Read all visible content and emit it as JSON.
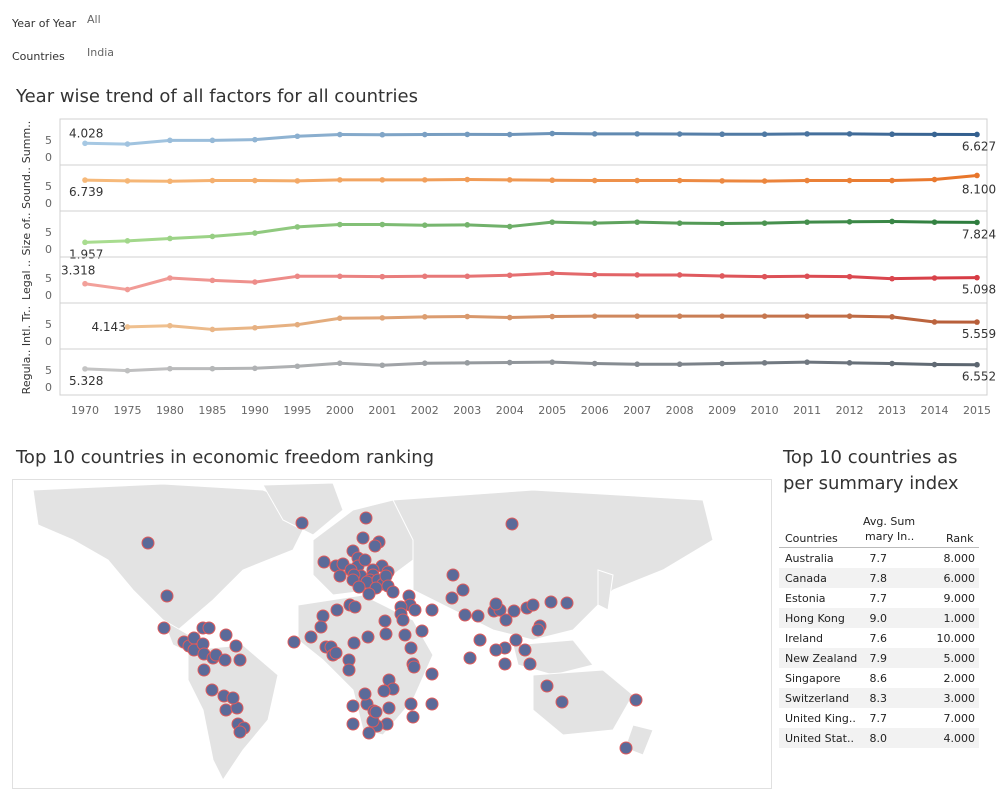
{
  "filters": {
    "year_label": "Year of Year",
    "year_value": "All",
    "countries_label": "Countries",
    "countries_value": "India"
  },
  "trend": {
    "title": "Year wise trend of all factors for all countries"
  },
  "map": {
    "title": "Top 10 countries in economic freedom ranking",
    "marker_color": "#5b6a99",
    "marker_border": "#e05a5a"
  },
  "table": {
    "title_line1": "Top 10 countries as",
    "title_line2": "per summary index",
    "col_countries": "Countries",
    "col_avg_line1": "Avg. Sum",
    "col_avg_line2": "mary In..",
    "col_rank": "Rank",
    "rows": [
      {
        "country": "Australia",
        "avg": "7.7",
        "rank": "8.000"
      },
      {
        "country": "Canada",
        "avg": "7.8",
        "rank": "6.000"
      },
      {
        "country": "Estonia",
        "avg": "7.7",
        "rank": "9.000"
      },
      {
        "country": "Hong Kong",
        "avg": "9.0",
        "rank": "1.000"
      },
      {
        "country": "Ireland",
        "avg": "7.6",
        "rank": "10.000"
      },
      {
        "country": "New Zealand",
        "avg": "7.9",
        "rank": "5.000"
      },
      {
        "country": "Singapore",
        "avg": "8.6",
        "rank": "2.000"
      },
      {
        "country": "Switzerland",
        "avg": "8.3",
        "rank": "3.000"
      },
      {
        "country": "United King..",
        "avg": "7.7",
        "rank": "7.000"
      },
      {
        "country": "United Stat..",
        "avg": "8.0",
        "rank": "4.000"
      }
    ]
  },
  "chart_data": {
    "type": "line",
    "title": "Year wise trend of all factors for all countries",
    "categories": [
      "1970",
      "1975",
      "1980",
      "1985",
      "1990",
      "1995",
      "2000",
      "2001",
      "2002",
      "2003",
      "2004",
      "2005",
      "2006",
      "2007",
      "2008",
      "2009",
      "2010",
      "2011",
      "2012",
      "2013",
      "2014",
      "2015"
    ],
    "ylim": [
      0,
      10
    ],
    "yticks": [
      "0",
      "5"
    ],
    "series": [
      {
        "name": "Summ..",
        "light": "#a6c8e3",
        "dark": "#34608f",
        "start_label": "4.028",
        "end_label": "6.627",
        "values": [
          4.03,
          3.8,
          4.9,
          4.9,
          5.1,
          6.1,
          6.6,
          6.55,
          6.6,
          6.65,
          6.6,
          6.9,
          6.8,
          6.8,
          6.75,
          6.7,
          6.7,
          6.8,
          6.8,
          6.7,
          6.65,
          6.63
        ]
      },
      {
        "name": "Sound..",
        "light": "#f6b97a",
        "dark": "#e8762b",
        "start_label": "6.739",
        "end_label": "8.100",
        "values": [
          6.74,
          6.5,
          6.4,
          6.6,
          6.6,
          6.5,
          6.8,
          6.8,
          6.8,
          6.9,
          6.8,
          6.7,
          6.6,
          6.6,
          6.6,
          6.5,
          6.45,
          6.6,
          6.6,
          6.6,
          6.9,
          8.1
        ]
      },
      {
        "name": "Size of..",
        "light": "#a8dc8f",
        "dark": "#2e7d3e",
        "start_label": "1.957",
        "end_label": "7.824",
        "values": [
          1.96,
          2.4,
          3.1,
          3.7,
          4.7,
          6.5,
          7.2,
          7.2,
          7.0,
          7.1,
          6.6,
          7.9,
          7.6,
          7.9,
          7.6,
          7.5,
          7.6,
          7.9,
          8.0,
          8.1,
          7.9,
          7.82
        ]
      },
      {
        "name": "Legal ..",
        "light": "#f2a09a",
        "dark": "#d73c45",
        "start_label": "3.318",
        "end_label": "5.098",
        "values": [
          3.32,
          1.6,
          5.0,
          4.3,
          3.8,
          5.5,
          5.5,
          5.4,
          5.5,
          5.5,
          5.8,
          6.4,
          6.0,
          5.9,
          5.9,
          5.6,
          5.4,
          5.5,
          5.4,
          4.8,
          5.0,
          5.1
        ]
      },
      {
        "name": "Intl. Tr..",
        "light": "#efc08f",
        "dark": "#b85f3a",
        "start_label": "4.143",
        "end_label": "5.559",
        "values": [
          null,
          4.14,
          4.5,
          3.4,
          3.9,
          4.8,
          6.7,
          6.8,
          7.1,
          7.2,
          6.9,
          7.2,
          7.3,
          7.3,
          7.3,
          7.3,
          7.3,
          7.3,
          7.3,
          7.1,
          5.6,
          5.56
        ]
      },
      {
        "name": "Regula..",
        "light": "#c4c4c4",
        "dark": "#5c6670",
        "start_label": "5.328",
        "end_label": "6.552",
        "values": [
          5.33,
          4.8,
          5.4,
          5.4,
          5.5,
          6.1,
          7.0,
          6.4,
          7.0,
          7.1,
          7.2,
          7.3,
          6.9,
          6.7,
          6.7,
          6.9,
          7.1,
          7.3,
          7.1,
          6.9,
          6.6,
          6.55
        ]
      }
    ]
  }
}
